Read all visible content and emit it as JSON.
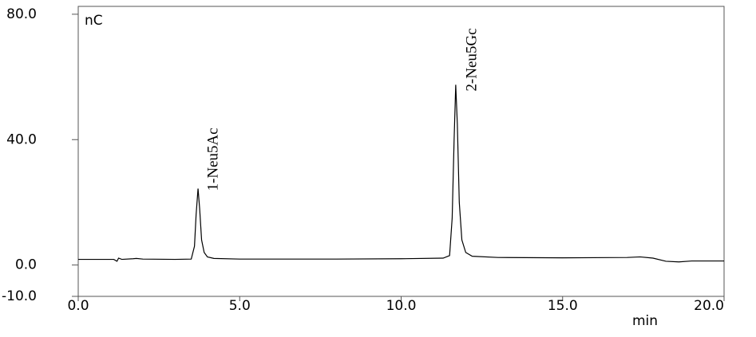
{
  "chart_data": {
    "type": "line",
    "y_unit_label": "nC",
    "xlabel": "min",
    "annotations": [
      "1-Neu5Ac",
      "2-Neu5Gc"
    ],
    "color": "#000000",
    "x": [
      0,
      1.1,
      1.2,
      1.25,
      1.35,
      1.7,
      1.8,
      2.0,
      3.0,
      3.5,
      3.6,
      3.65,
      3.71,
      3.76,
      3.82,
      3.9,
      4.0,
      4.2,
      5,
      8,
      10,
      11.3,
      11.5,
      11.58,
      11.64,
      11.69,
      11.74,
      11.8,
      11.88,
      12.0,
      12.2,
      13,
      15,
      17,
      17.4,
      17.8,
      18.2,
      18.6,
      19,
      20
    ],
    "values": [
      1.8,
      1.8,
      1.2,
      2.2,
      1.8,
      2.0,
      2.1,
      1.9,
      1.8,
      1.9,
      6,
      16,
      24.4,
      18,
      8,
      4,
      2.6,
      2.1,
      1.9,
      1.9,
      2.0,
      2.2,
      3,
      15,
      40,
      57.5,
      45,
      20,
      8,
      4,
      2.8,
      2.4,
      2.3,
      2.4,
      2.6,
      2.2,
      1.2,
      1.0,
      1.3,
      1.3
    ],
    "xlim": [
      0,
      20
    ],
    "ylim": [
      -10,
      82
    ],
    "xticks": [
      {
        "value": 0,
        "label": "0.0"
      },
      {
        "value": 5,
        "label": "5.0"
      },
      {
        "value": 10,
        "label": "10.0"
      },
      {
        "value": 15,
        "label": "15.0"
      },
      {
        "value": 20,
        "label": "20.0"
      }
    ],
    "yticks": [
      {
        "value": -10,
        "label": "-10.0"
      },
      {
        "value": 0,
        "label": "0.0"
      },
      {
        "value": 40,
        "label": "40.0"
      },
      {
        "value": 80,
        "label": "80.0"
      }
    ]
  }
}
